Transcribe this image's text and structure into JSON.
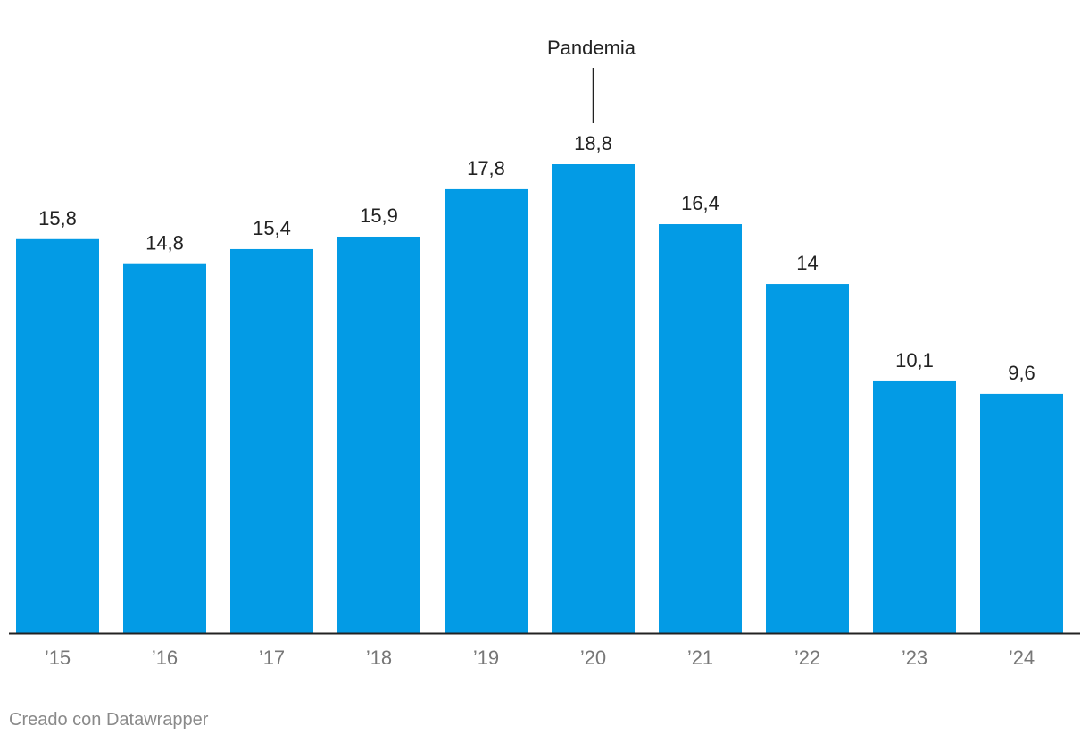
{
  "chart_data": {
    "type": "bar",
    "categories": [
      "’15",
      "’16",
      "’17",
      "’18",
      "’19",
      "’20",
      "’21",
      "’22",
      "’23",
      "’24"
    ],
    "values": [
      15.8,
      14.8,
      15.4,
      15.9,
      17.8,
      18.8,
      16.4,
      14,
      10.1,
      9.6
    ],
    "value_labels": [
      "15,8",
      "14,8",
      "15,4",
      "15,9",
      "17,8",
      "18,8",
      "16,4",
      "14",
      "10,1",
      "9,6"
    ],
    "ylim": [
      0,
      18.8
    ],
    "grid": false,
    "bar_color": "#039be5",
    "annotation": {
      "text": "Pandemia",
      "category": "’20"
    }
  },
  "footer": {
    "credit": "Creado con Datawrapper"
  }
}
